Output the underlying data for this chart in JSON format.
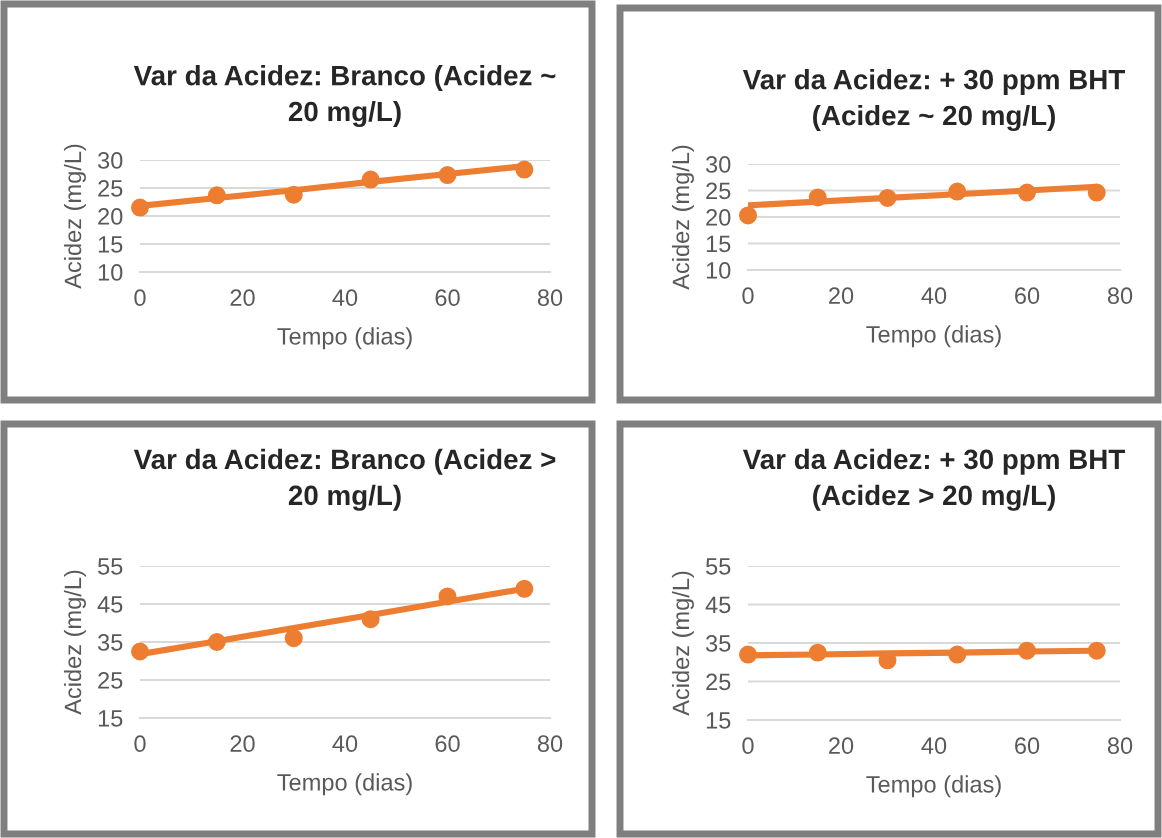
{
  "chart_data": [
    {
      "type": "scatter",
      "title": "Var da Acidez: Branco (Acidez ~\n20 mg/L)",
      "xlabel": "Tempo (dias)",
      "ylabel": "Acidez (mg/L)",
      "x": [
        0,
        15,
        30,
        45,
        60,
        75
      ],
      "xlim": [
        0,
        80
      ],
      "xticks": [
        0,
        20,
        40,
        60,
        80
      ],
      "ylim": [
        10,
        30
      ],
      "yticks": [
        10,
        15,
        20,
        25,
        30
      ],
      "grid": "y",
      "series": [
        {
          "color": "#ed7d31",
          "marker": "circle",
          "values": [
            21.5,
            23.7,
            23.8,
            26.5,
            27.3,
            28.3
          ]
        },
        {
          "type": "line",
          "color": "#ed7d31",
          "marker": "none",
          "values": [
            21.8,
            23.2,
            24.6,
            26.1,
            27.5,
            28.9
          ]
        }
      ]
    },
    {
      "type": "scatter",
      "title": "Var da Acidez: + 30 ppm BHT\n(Acidez ~ 20 mg/L)",
      "xlabel": "Tempo (dias)",
      "ylabel": "Acidez (mg/L)",
      "x": [
        0,
        15,
        30,
        45,
        60,
        75
      ],
      "xlim": [
        0,
        80
      ],
      "xticks": [
        0,
        20,
        40,
        60,
        80
      ],
      "ylim": [
        10,
        30
      ],
      "yticks": [
        10,
        15,
        20,
        25,
        30
      ],
      "grid": "y",
      "series": [
        {
          "color": "#ed7d31",
          "marker": "circle",
          "values": [
            20.3,
            23.7,
            23.6,
            24.8,
            24.6,
            24.6
          ]
        },
        {
          "type": "line",
          "color": "#ed7d31",
          "marker": "none",
          "values": [
            22.2,
            22.9,
            23.6,
            24.3,
            25,
            25.7
          ]
        }
      ]
    },
    {
      "type": "scatter",
      "title": "Var da Acidez: Branco (Acidez >\n20 mg/L)",
      "xlabel": "Tempo (dias)",
      "ylabel": "Acidez (mg/L)",
      "x": [
        0,
        15,
        30,
        45,
        60,
        75
      ],
      "xlim": [
        0,
        80
      ],
      "xticks": [
        0,
        20,
        40,
        60,
        80
      ],
      "ylim": [
        15,
        55
      ],
      "yticks": [
        15,
        25,
        35,
        45,
        55
      ],
      "grid": "y",
      "series": [
        {
          "color": "#ed7d31",
          "marker": "circle",
          "values": [
            32.5,
            35,
            36,
            41,
            47,
            49
          ]
        },
        {
          "type": "line",
          "color": "#ed7d31",
          "marker": "none",
          "values": [
            31.8,
            35.2,
            38.7,
            42.1,
            45.6,
            49
          ]
        }
      ]
    },
    {
      "type": "scatter",
      "title": "Var da Acidez: + 30 ppm BHT\n(Acidez > 20 mg/L)",
      "xlabel": "Tempo (dias)",
      "ylabel": "Acidez (mg/L)",
      "x": [
        0,
        15,
        30,
        45,
        60,
        75
      ],
      "xlim": [
        0,
        80
      ],
      "xticks": [
        0,
        20,
        40,
        60,
        80
      ],
      "ylim": [
        15,
        55
      ],
      "yticks": [
        15,
        25,
        35,
        45,
        55
      ],
      "grid": "y",
      "series": [
        {
          "color": "#ed7d31",
          "marker": "circle",
          "values": [
            32,
            32.5,
            30.5,
            32,
            33,
            33
          ]
        },
        {
          "type": "line",
          "color": "#ed7d31",
          "marker": "none",
          "values": [
            31.8,
            32,
            32.3,
            32.5,
            32.8,
            33
          ]
        }
      ]
    }
  ]
}
